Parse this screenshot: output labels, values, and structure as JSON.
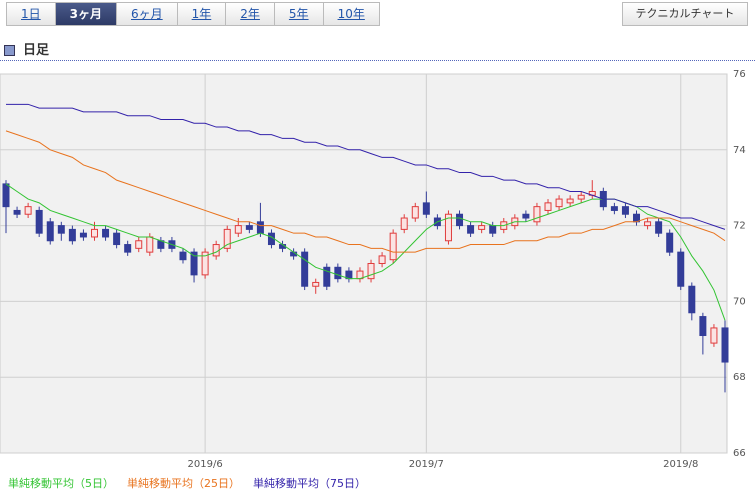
{
  "tabs": [
    "1日",
    "3ヶ月",
    "6ヶ月",
    "1年",
    "2年",
    "5年",
    "10年"
  ],
  "technical_button": "テクニカルチャート",
  "section_title": "日足",
  "chart_data": {
    "type": "candlestick",
    "categories": [
      null,
      null,
      null,
      null,
      null,
      null,
      null,
      null,
      null,
      null,
      null,
      null,
      null,
      null,
      null,
      null,
      null,
      null,
      "2019/6",
      null,
      null,
      null,
      null,
      null,
      null,
      null,
      null,
      null,
      null,
      null,
      null,
      null,
      null,
      null,
      null,
      null,
      null,
      null,
      "2019/7",
      null,
      null,
      null,
      null,
      null,
      null,
      null,
      null,
      null,
      null,
      null,
      null,
      null,
      null,
      null,
      null,
      null,
      null,
      null,
      null,
      null,
      null,
      "2019/8",
      null,
      null,
      null,
      null
    ],
    "open": [
      73.1,
      72.4,
      72.3,
      72.4,
      72.1,
      72.0,
      71.9,
      71.8,
      71.7,
      71.9,
      71.8,
      71.5,
      71.4,
      71.3,
      71.6,
      71.6,
      71.3,
      71.3,
      70.7,
      71.2,
      71.4,
      71.8,
      72.0,
      72.1,
      71.8,
      71.5,
      71.3,
      71.3,
      70.4,
      70.9,
      70.9,
      70.8,
      70.6,
      70.6,
      71.0,
      71.1,
      71.9,
      72.2,
      72.6,
      72.2,
      71.6,
      72.3,
      72.0,
      71.9,
      72.0,
      71.9,
      72.0,
      72.3,
      72.1,
      72.4,
      72.5,
      72.6,
      72.7,
      72.8,
      72.9,
      72.5,
      72.5,
      72.3,
      72.0,
      72.1,
      71.8,
      71.3,
      70.4,
      69.6,
      68.9,
      69.3
    ],
    "high": [
      73.2,
      72.5,
      72.6,
      72.5,
      72.2,
      72.1,
      72.0,
      71.9,
      72.1,
      72.0,
      71.9,
      71.6,
      71.7,
      71.8,
      71.7,
      71.7,
      71.4,
      71.4,
      71.4,
      71.6,
      72.0,
      72.2,
      72.1,
      72.6,
      71.9,
      71.6,
      71.4,
      71.4,
      70.6,
      71.0,
      71.0,
      70.9,
      70.9,
      71.1,
      71.3,
      71.9,
      72.3,
      72.6,
      72.9,
      72.3,
      72.4,
      72.4,
      72.1,
      72.1,
      72.1,
      72.2,
      72.3,
      72.4,
      72.6,
      72.7,
      72.8,
      72.8,
      72.9,
      73.2,
      73.0,
      72.6,
      72.6,
      72.4,
      72.2,
      72.2,
      71.9,
      71.4,
      70.5,
      69.7,
      69.4,
      69.5
    ],
    "low": [
      71.8,
      72.2,
      72.2,
      71.7,
      71.5,
      71.6,
      71.5,
      71.6,
      71.6,
      71.6,
      71.4,
      71.2,
      71.3,
      71.2,
      71.3,
      71.3,
      71.0,
      70.5,
      70.6,
      71.1,
      71.3,
      71.7,
      71.8,
      71.7,
      71.4,
      71.3,
      71.1,
      70.3,
      70.2,
      70.3,
      70.5,
      70.5,
      70.5,
      70.5,
      70.9,
      71.0,
      71.8,
      72.1,
      72.2,
      71.9,
      71.5,
      71.9,
      71.7,
      71.8,
      71.7,
      71.8,
      71.9,
      72.1,
      72.0,
      72.3,
      72.4,
      72.5,
      72.6,
      72.7,
      72.4,
      72.3,
      72.2,
      72.0,
      71.9,
      71.7,
      71.2,
      70.3,
      69.5,
      68.6,
      68.8,
      67.6
    ],
    "close": [
      72.5,
      72.3,
      72.5,
      71.8,
      71.6,
      71.8,
      71.6,
      71.7,
      71.9,
      71.7,
      71.5,
      71.3,
      71.6,
      71.7,
      71.4,
      71.4,
      71.1,
      70.7,
      71.3,
      71.5,
      71.9,
      72.0,
      71.9,
      71.8,
      71.5,
      71.4,
      71.2,
      70.4,
      70.5,
      70.4,
      70.6,
      70.6,
      70.8,
      71.0,
      71.2,
      71.8,
      72.2,
      72.5,
      72.3,
      72.0,
      72.3,
      72.0,
      71.8,
      72.0,
      71.8,
      72.1,
      72.2,
      72.2,
      72.5,
      72.6,
      72.7,
      72.7,
      72.8,
      72.9,
      72.5,
      72.4,
      72.3,
      72.1,
      72.1,
      71.8,
      71.3,
      70.4,
      69.7,
      69.1,
      69.3,
      68.4
    ],
    "up_color": "#e03c3c",
    "down_color": "#333d99",
    "series": [
      {
        "name": "単純移動平均（5日）",
        "color": "#33c433",
        "values": [
          73.1,
          72.9,
          72.7,
          72.6,
          72.4,
          72.3,
          72.2,
          72.1,
          72.0,
          72.0,
          71.9,
          71.8,
          71.7,
          71.7,
          71.6,
          71.5,
          71.4,
          71.2,
          71.2,
          71.3,
          71.5,
          71.6,
          71.7,
          71.8,
          71.7,
          71.5,
          71.3,
          71.1,
          70.9,
          70.8,
          70.7,
          70.6,
          70.6,
          70.7,
          70.8,
          71.0,
          71.3,
          71.6,
          71.9,
          72.1,
          72.2,
          72.2,
          72.1,
          72.1,
          72.0,
          72.0,
          72.1,
          72.1,
          72.2,
          72.3,
          72.4,
          72.5,
          72.6,
          72.7,
          72.7,
          72.7,
          72.6,
          72.5,
          72.3,
          72.2,
          72.1,
          71.7,
          71.2,
          70.8,
          70.3,
          69.5
        ]
      },
      {
        "name": "単純移動平均（25日）",
        "color": "#e8731e",
        "values": [
          74.5,
          74.4,
          74.3,
          74.2,
          74.0,
          73.9,
          73.8,
          73.6,
          73.5,
          73.4,
          73.2,
          73.1,
          73.0,
          72.9,
          72.8,
          72.7,
          72.6,
          72.5,
          72.4,
          72.3,
          72.2,
          72.1,
          72.1,
          72.0,
          72.0,
          71.9,
          71.8,
          71.8,
          71.7,
          71.7,
          71.6,
          71.5,
          71.5,
          71.4,
          71.4,
          71.3,
          71.3,
          71.3,
          71.4,
          71.4,
          71.4,
          71.4,
          71.5,
          71.5,
          71.5,
          71.5,
          71.6,
          71.6,
          71.6,
          71.7,
          71.7,
          71.8,
          71.8,
          71.9,
          71.9,
          72.0,
          72.1,
          72.1,
          72.2,
          72.2,
          72.2,
          72.1,
          72.0,
          71.9,
          71.8,
          71.6
        ]
      },
      {
        "name": "単純移動平均（75日）",
        "color": "#3322aa",
        "values": [
          75.2,
          75.2,
          75.2,
          75.1,
          75.1,
          75.1,
          75.1,
          75.0,
          75.0,
          75.0,
          75.0,
          74.9,
          74.9,
          74.9,
          74.8,
          74.8,
          74.8,
          74.7,
          74.7,
          74.6,
          74.6,
          74.5,
          74.5,
          74.4,
          74.4,
          74.3,
          74.3,
          74.2,
          74.2,
          74.1,
          74.1,
          74.0,
          74.0,
          73.9,
          73.8,
          73.8,
          73.7,
          73.6,
          73.6,
          73.5,
          73.5,
          73.4,
          73.4,
          73.3,
          73.3,
          73.2,
          73.2,
          73.1,
          73.1,
          73.0,
          73.0,
          72.9,
          72.9,
          72.8,
          72.7,
          72.7,
          72.6,
          72.5,
          72.5,
          72.4,
          72.3,
          72.2,
          72.2,
          72.1,
          72.0,
          71.9
        ]
      }
    ],
    "ylim": [
      66,
      76
    ],
    "yticks": [
      66,
      68,
      70,
      72,
      74,
      76
    ],
    "grid": true
  }
}
